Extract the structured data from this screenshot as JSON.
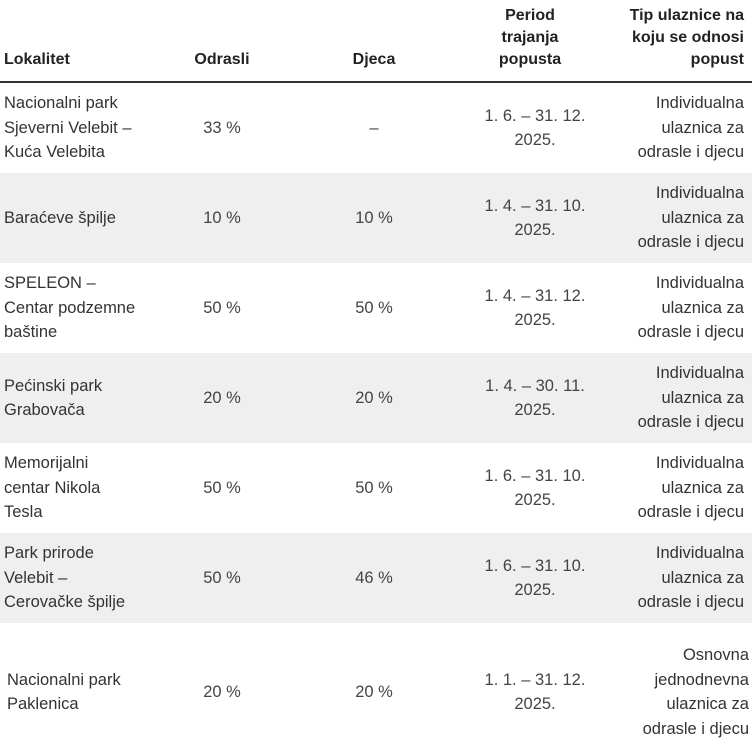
{
  "headers": {
    "lokalitet": "Lokalitet",
    "odrasli": "Odrasli",
    "djeca": "Djeca",
    "period": "Period trajanja popusta",
    "tip": "Tip ulaznice na koju se odnosi popust"
  },
  "rows": [
    {
      "lokalitet": "Nacionalni park Sjeverni Velebit – Kuća Velebita",
      "odrasli": "33 %",
      "djeca": "–",
      "period": "1. 6. – 31. 12. 2025.",
      "tip": "Individualna ulaznica za odrasle i djecu"
    },
    {
      "lokalitet": "Baraćeve špilje",
      "odrasli": "10 %",
      "djeca": "10 %",
      "period": "1. 4. – 31. 10. 2025.",
      "tip": "Individualna ulaznica za odrasle i djecu"
    },
    {
      "lokalitet": "SPELEON – Centar podzemne baštine",
      "odrasli": "50 %",
      "djeca": "50 %",
      "period": "1. 4. – 31. 12. 2025.",
      "tip": "Individualna ulaznica za odrasle i djecu"
    },
    {
      "lokalitet": "Pećinski park Grabovača",
      "odrasli": "20 %",
      "djeca": "20 %",
      "period": "1. 4. – 30. 11. 2025.",
      "tip": "Individualna ulaznica za odrasle i djecu"
    },
    {
      "lokalitet": "Memorijalni centar Nikola Tesla",
      "odrasli": "50 %",
      "djeca": "50 %",
      "period": "1. 6. – 31. 10. 2025.",
      "tip": "Individualna ulaznica za odrasle i djecu"
    },
    {
      "lokalitet": "Park prirode Velebit – Cerovačke špilje",
      "odrasli": "50 %",
      "djeca": "46 %",
      "period": "1. 6. – 31. 10. 2025.",
      "tip": "Individualna ulaznica za odrasle i djecu"
    },
    {
      "lokalitet": "Nacionalni park Paklenica",
      "odrasli": "20 %",
      "djeca": "20 %",
      "period": "1. 1. – 31. 12. 2025.",
      "tip": "Osnovna jednodnevna ulaznica za odrasle i djecu"
    }
  ]
}
